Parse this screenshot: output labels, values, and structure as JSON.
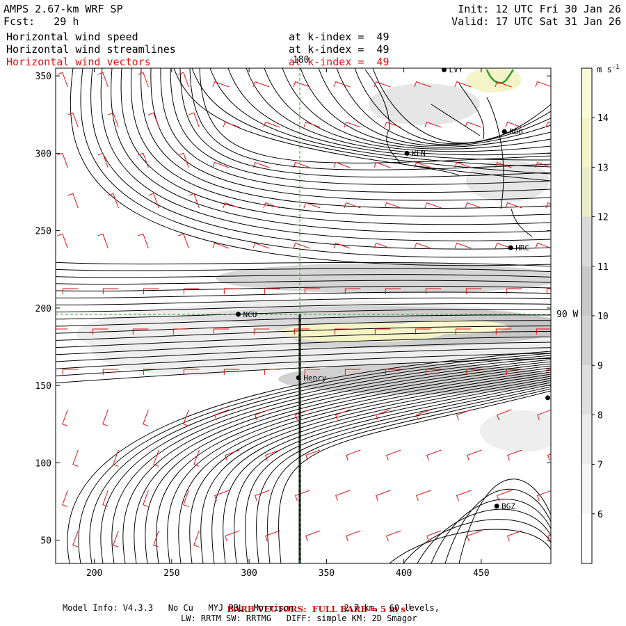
{
  "header": {
    "model": "AMPS 2.67-km WRF SP",
    "fcst": "Fcst:   29 h",
    "init": "Init: 12 UTC Fri 30 Jan 26",
    "valid": "Valid: 17 UTC Sat 31 Jan 26",
    "fields": [
      {
        "label": "Horizontal wind speed",
        "level": "at k-index =  49",
        "color": "#000000"
      },
      {
        "label": "Horizontal wind streamlines",
        "level": "at k-index =  49",
        "color": "#000000"
      },
      {
        "label": "Horizontal wind vectors",
        "level": "at k-index =  49",
        "color": "#e01010"
      }
    ]
  },
  "footer": {
    "barb": "BARB VECTORS:  FULL BARB = 5 m s",
    "barb_sup": "-1",
    "model_info": "Model Info: V4.3.3   No Cu   MYJ PBL  Morrison          2.7 km,  60 levels,",
    "physics": "LW: RRTM SW: RRTMG   DIFF: simple KM: 2D Smagor"
  },
  "chart_data": {
    "type": "heatmap",
    "xlim": [
      175,
      495
    ],
    "ylim": [
      35,
      355
    ],
    "x_ticks": [
      200,
      250,
      300,
      350,
      400,
      450
    ],
    "y_ticks": [
      50,
      100,
      150,
      200,
      250,
      300,
      350
    ],
    "colorbar": {
      "unit": "m s",
      "unit_sup": "-1",
      "range": [
        5,
        15
      ],
      "ticks": [
        6,
        7,
        8,
        9,
        10,
        11,
        12,
        13,
        14
      ],
      "colors": [
        "#ffffff",
        "#f5f5f5",
        "#ebebeb",
        "#dfdfdf",
        "#d2d2d2",
        "#c8c8c8",
        "#d9d9d9",
        "#ececcc",
        "#f4f4c8",
        "#fbfbd8"
      ]
    },
    "reference_lines": [
      {
        "label": "180",
        "orientation": "vertical",
        "value": 333
      },
      {
        "label": "90 W",
        "orientation": "horizontal",
        "value": 196
      }
    ],
    "stations": [
      {
        "name": "LVY",
        "x": 426,
        "y": 354
      },
      {
        "name": "RDG",
        "x": 465,
        "y": 314
      },
      {
        "name": "KLN",
        "x": 402,
        "y": 300
      },
      {
        "name": "HRC",
        "x": 469,
        "y": 239
      },
      {
        "name": "NCU",
        "x": 293,
        "y": 196
      },
      {
        "name": "Henry",
        "x": 332,
        "y": 155
      },
      {
        "name": "",
        "x": 493,
        "y": 142
      },
      {
        "name": "BGZ",
        "x": 460,
        "y": 72
      }
    ]
  }
}
